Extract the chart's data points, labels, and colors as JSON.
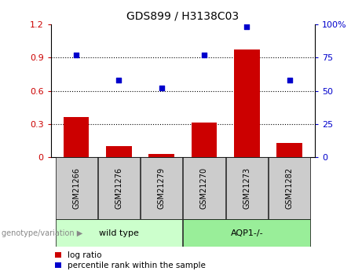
{
  "title": "GDS899 / H3138C03",
  "samples": [
    "GSM21266",
    "GSM21276",
    "GSM21279",
    "GSM21270",
    "GSM21273",
    "GSM21282"
  ],
  "log_ratio": [
    0.36,
    0.1,
    0.03,
    0.31,
    0.97,
    0.13
  ],
  "percentile_rank_pct": [
    77,
    58,
    52,
    77,
    98,
    58
  ],
  "bar_color": "#cc0000",
  "dot_color": "#0000cc",
  "ylim_left": [
    0,
    1.2
  ],
  "ylim_right": [
    0,
    100
  ],
  "yticks_left": [
    0,
    0.3,
    0.6,
    0.9,
    1.2
  ],
  "yticks_right": [
    0,
    25,
    50,
    75,
    100
  ],
  "ytick_labels_left": [
    "0",
    "0.3",
    "0.6",
    "0.9",
    "1.2"
  ],
  "ytick_labels_right": [
    "0",
    "25",
    "50",
    "75",
    "100%"
  ],
  "hlines": [
    0.3,
    0.6,
    0.9
  ],
  "group1_label": "wild type",
  "group2_label": "AQP1-/-",
  "group1_indices": [
    0,
    1,
    2
  ],
  "group2_indices": [
    3,
    4,
    5
  ],
  "group1_color": "#ccffcc",
  "group2_color": "#99ee99",
  "genotype_label": "genotype/variation",
  "legend_bar_label": "log ratio",
  "legend_dot_label": "percentile rank within the sample",
  "left_tick_color": "#cc0000",
  "right_tick_color": "#0000cc",
  "bar_width": 0.6,
  "box_width": 0.98
}
